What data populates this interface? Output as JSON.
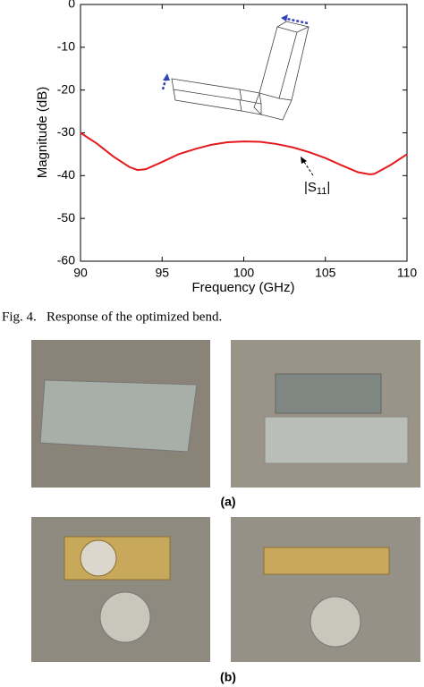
{
  "chart_data": {
    "type": "line",
    "x_label": "Frequency (GHz)",
    "y_label": "Magnitude (dB)",
    "annotation": {
      "open": "|S",
      "subscript": "11",
      "close": "|"
    },
    "x": [
      90,
      91,
      92,
      93,
      93.5,
      94,
      95,
      96,
      97,
      98,
      99,
      100,
      101,
      102,
      103,
      104,
      105,
      106,
      107,
      107.7,
      108,
      109,
      110
    ],
    "values": [
      -30,
      -32.5,
      -35.5,
      -38,
      -38.7,
      -38.5,
      -36.8,
      -35,
      -33.8,
      -32.8,
      -32.2,
      -32,
      -32.1,
      -32.6,
      -33.4,
      -34.5,
      -35.9,
      -37.6,
      -39.2,
      -39.7,
      -39.6,
      -37.5,
      -35
    ],
    "color": "#e41a1c",
    "xlim": [
      90,
      110
    ],
    "xticks": [
      90,
      95,
      100,
      105,
      110
    ],
    "ylim": [
      -60,
      0
    ],
    "yticks": [
      -60,
      -50,
      -40,
      -30,
      -20,
      -10,
      0
    ]
  },
  "caption": "Fig. 4.   Response of the optimized bend.",
  "photo_labels": [
    "(a)",
    "(b)"
  ]
}
